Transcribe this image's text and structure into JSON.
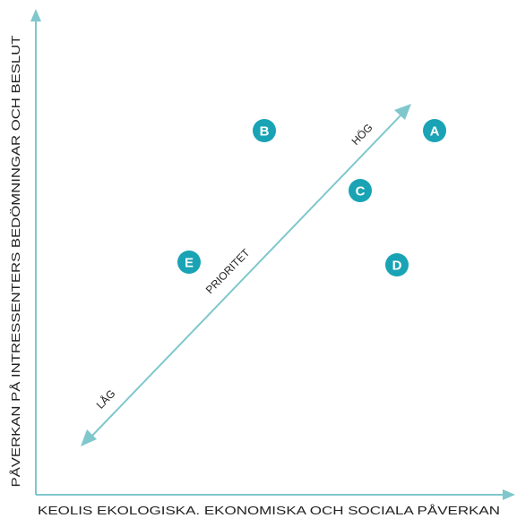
{
  "diagram": {
    "x_axis_label": "KEOLIS EKOLOGISKA. EKONOMISKA OCH SOCIALA PÅVERKAN",
    "y_axis_label": "PÅVERKAN PÅ INTRESSENTERS BEDÖMNINGAR OCH BESLUT",
    "priority": {
      "label": "PRIORITET",
      "high_label": "HÖG",
      "low_label": "LÅG"
    },
    "colors": {
      "axis": "#7fc7cd",
      "marker": "#19a3b5",
      "marker_text": "#ffffff",
      "label_text": "#222222"
    },
    "markers": [
      {
        "label": "A"
      },
      {
        "label": "B"
      },
      {
        "label": "C"
      },
      {
        "label": "D"
      },
      {
        "label": "E"
      }
    ]
  }
}
